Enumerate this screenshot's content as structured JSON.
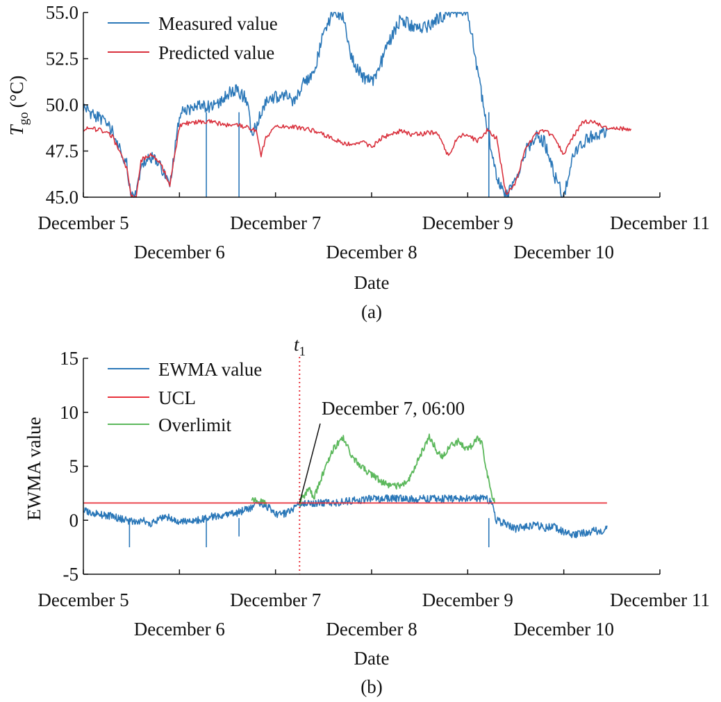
{
  "colors": {
    "measured": "#2a77b8",
    "predicted": "#d9303c",
    "ewma": "#2a77b8",
    "ucl": "#e8303a",
    "overlimit": "#5cb85c",
    "axis": "#111111"
  },
  "chart_data": [
    {
      "type": "line",
      "panel_label": "(a)",
      "xlabel": "Date",
      "ylabel": "T",
      "ylabel_subscript": "go",
      "ylabel_unit": "(°C)",
      "x_unit": "days since December 5, 00:00",
      "xlim": [
        0,
        6.0
      ],
      "ylim": [
        45.0,
        55.0
      ],
      "yticks": [
        "45.0",
        "47.5",
        "50.0",
        "52.5",
        "55.0"
      ],
      "ytick_values": [
        45.0,
        47.5,
        50.0,
        52.5,
        55.0
      ],
      "xtick_labels_row1": [
        "December 5",
        "December 7",
        "December 9",
        "December 11"
      ],
      "xtick_labels_row2": [
        "December 6",
        "December 8",
        "December 10"
      ],
      "legend": [
        "Measured value",
        "Predicted value"
      ],
      "legend_position": "top-left",
      "series": [
        {
          "name": "Measured value",
          "x": [
            0.0,
            0.1,
            0.2,
            0.3,
            0.4,
            0.45,
            0.5,
            0.55,
            0.6,
            0.7,
            0.8,
            0.9,
            1.0,
            1.05,
            1.1,
            1.15,
            1.2,
            1.3,
            1.4,
            1.5,
            1.6,
            1.7,
            1.75,
            1.8,
            1.85,
            1.9,
            2.0,
            2.1,
            2.2,
            2.3,
            2.4,
            2.5,
            2.6,
            2.7,
            2.8,
            2.9,
            3.0,
            3.1,
            3.2,
            3.3,
            3.4,
            3.5,
            3.6,
            3.7,
            3.8,
            3.9,
            4.0,
            4.1,
            4.2,
            4.3,
            4.4,
            4.5,
            4.6,
            4.7,
            4.8,
            4.9,
            5.0,
            5.1,
            5.2,
            5.3,
            5.4,
            5.45
          ],
          "y": [
            49.9,
            49.5,
            49.2,
            48.6,
            47.3,
            46.8,
            45.0,
            45.0,
            46.9,
            47.2,
            46.7,
            45.5,
            49.4,
            49.7,
            49.8,
            49.8,
            49.9,
            49.9,
            50.1,
            50.6,
            50.8,
            50.3,
            48.5,
            48.9,
            49.5,
            50.1,
            50.4,
            50.5,
            50.2,
            51.2,
            51.7,
            53.9,
            55.0,
            54.8,
            52.4,
            51.6,
            51.2,
            52.3,
            53.6,
            54.6,
            54.3,
            54.2,
            54.3,
            54.7,
            55.0,
            55.0,
            55.0,
            52.0,
            48.8,
            46.2,
            45.0,
            46.0,
            47.5,
            48.3,
            48.0,
            46.2,
            45.0,
            47.3,
            48.0,
            48.3,
            48.4,
            48.6
          ],
          "spikes": [
            {
              "x": 1.28,
              "y": 45.0
            },
            {
              "x": 1.62,
              "y": 45.0
            },
            {
              "x": 4.22,
              "y": 45.0
            }
          ]
        },
        {
          "name": "Predicted value",
          "x": [
            0.0,
            0.1,
            0.2,
            0.3,
            0.4,
            0.45,
            0.5,
            0.55,
            0.6,
            0.7,
            0.8,
            0.9,
            1.0,
            1.05,
            1.1,
            1.2,
            1.3,
            1.4,
            1.5,
            1.6,
            1.7,
            1.8,
            1.85,
            1.9,
            2.0,
            2.1,
            2.2,
            2.3,
            2.4,
            2.5,
            2.6,
            2.7,
            2.8,
            2.9,
            3.0,
            3.1,
            3.2,
            3.3,
            3.4,
            3.5,
            3.6,
            3.7,
            3.8,
            3.9,
            4.0,
            4.1,
            4.2,
            4.3,
            4.4,
            4.5,
            4.6,
            4.7,
            4.8,
            4.9,
            5.0,
            5.1,
            5.2,
            5.3,
            5.4,
            5.5,
            5.6,
            5.7
          ],
          "y": [
            48.7,
            48.7,
            48.6,
            48.3,
            47.2,
            46.6,
            45.0,
            45.0,
            47.0,
            47.3,
            46.9,
            45.7,
            48.8,
            49.0,
            49.0,
            49.1,
            49.1,
            49.0,
            48.9,
            48.9,
            48.8,
            48.6,
            47.3,
            48.2,
            48.8,
            48.8,
            48.8,
            48.7,
            48.6,
            48.4,
            48.2,
            47.9,
            47.9,
            48.0,
            47.7,
            48.2,
            48.4,
            48.6,
            48.4,
            48.4,
            48.5,
            48.4,
            47.2,
            48.3,
            48.4,
            48.0,
            48.6,
            48.2,
            45.1,
            45.8,
            47.6,
            48.4,
            48.6,
            48.3,
            47.3,
            48.3,
            49.1,
            49.1,
            48.8,
            48.7,
            48.7,
            48.7
          ]
        }
      ]
    },
    {
      "type": "line",
      "panel_label": "(b)",
      "xlabel": "Date",
      "ylabel": "EWMA value",
      "x_unit": "days since December 5, 00:00",
      "xlim": [
        0,
        6.0
      ],
      "ylim": [
        -5,
        15
      ],
      "yticks": [
        "-5",
        "0",
        "5",
        "10",
        "15"
      ],
      "ytick_values": [
        -5,
        0,
        5,
        10,
        15
      ],
      "xtick_labels_row1": [
        "December 5",
        "December 7",
        "December 9",
        "December 11"
      ],
      "xtick_labels_row2": [
        "December 6",
        "December 8",
        "December 10"
      ],
      "legend": [
        "EWMA value",
        "UCL",
        "Overlimit"
      ],
      "legend_position": "top-left",
      "ucl": 1.6,
      "ucl_x_range": [
        0,
        5.45
      ],
      "vline": {
        "x": 2.25,
        "label": "t",
        "label_subscript": "1"
      },
      "annotation": {
        "text": "December 7, 06:00",
        "target_x": 2.25,
        "target_y": 1.6
      },
      "series": [
        {
          "name": "EWMA value",
          "x": [
            0.0,
            0.1,
            0.2,
            0.3,
            0.4,
            0.5,
            0.6,
            0.7,
            0.8,
            0.9,
            1.0,
            1.1,
            1.2,
            1.3,
            1.4,
            1.5,
            1.6,
            1.7,
            1.75,
            1.8,
            1.85,
            1.9,
            1.95,
            2.0,
            2.1,
            2.2,
            2.25,
            2.3,
            2.4,
            2.5,
            2.6,
            3.0,
            4.2,
            4.25,
            4.3,
            4.4,
            4.5,
            4.6,
            4.7,
            4.8,
            4.9,
            5.0,
            5.1,
            5.2,
            5.3,
            5.4,
            5.45
          ],
          "y": [
            0.9,
            0.7,
            0.5,
            0.4,
            0.1,
            -0.1,
            0.0,
            -0.3,
            0.2,
            0.3,
            -0.2,
            -0.1,
            0.0,
            0.3,
            0.4,
            0.6,
            0.7,
            1.0,
            1.2,
            1.4,
            1.6,
            1.4,
            1.0,
            0.6,
            0.6,
            1.2,
            1.5,
            1.5,
            1.6,
            1.6,
            1.6,
            2.0,
            2.0,
            1.6,
            0.0,
            -0.4,
            -0.8,
            -0.6,
            -0.4,
            -0.7,
            -0.6,
            -1.1,
            -1.4,
            -1.2,
            -1.0,
            -1.0,
            -0.5
          ],
          "spikes": [
            {
              "x": 0.48,
              "y": -2.5
            },
            {
              "x": 1.28,
              "y": -2.5
            },
            {
              "x": 1.62,
              "y": -1.5
            },
            {
              "x": 4.22,
              "y": -2.5
            }
          ]
        },
        {
          "name": "UCL",
          "x": [
            0,
            5.45
          ],
          "y": [
            1.6,
            1.6
          ]
        },
        {
          "name": "Overlimit",
          "segments": [
            {
              "x": [
                1.75,
                1.8,
                1.85,
                1.9
              ],
              "y": [
                1.7,
                2.0,
                1.8,
                1.7
              ]
            },
            {
              "x": [
                2.25,
                2.3,
                2.35,
                2.4,
                2.5,
                2.6,
                2.7,
                2.8,
                2.9,
                3.0,
                3.1,
                3.2,
                3.3,
                3.4,
                3.5,
                3.6,
                3.7,
                3.75,
                3.8,
                3.9,
                4.0,
                4.1,
                4.15,
                4.2,
                4.25,
                4.28
              ],
              "y": [
                1.6,
                2.3,
                2.9,
                2.0,
                4.5,
                6.6,
                7.7,
                5.8,
                4.9,
                4.2,
                3.6,
                3.1,
                3.2,
                3.9,
                5.9,
                7.8,
                6.1,
                5.9,
                6.8,
                7.3,
                6.5,
                7.6,
                7.0,
                4.5,
                2.4,
                1.6
              ]
            }
          ]
        }
      ]
    }
  ]
}
